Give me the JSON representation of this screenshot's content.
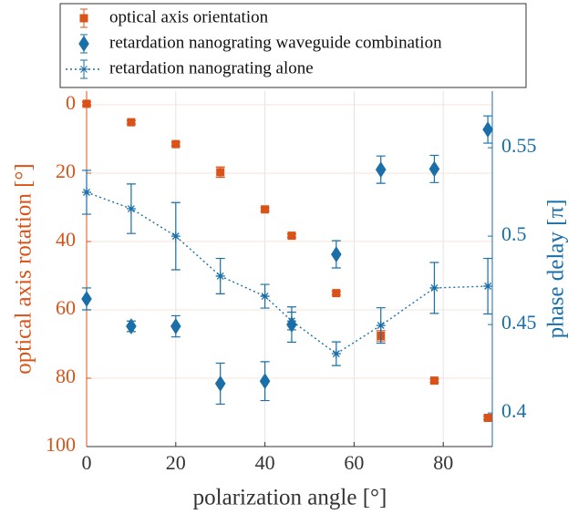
{
  "chart_data": {
    "type": "scatter",
    "xlabel": "polarization angle [°]",
    "ylabel": "optical axis rotation [°]",
    "y2label": "phase delay [π]",
    "x": [
      0,
      10,
      20,
      30,
      40,
      46,
      56,
      66,
      78,
      90
    ],
    "xlim": [
      0,
      91
    ],
    "xticks": [
      0,
      20,
      40,
      60,
      80
    ],
    "ylim": [
      -4,
      100
    ],
    "yticks": [
      0,
      20,
      40,
      60,
      80,
      100
    ],
    "y_reverse": true,
    "y2lim": [
      0.381,
      0.582
    ],
    "y2ticks": [
      0.4,
      0.45,
      0.5,
      0.55
    ],
    "grid": true,
    "legend": "top",
    "series": [
      {
        "name": "optical axis orientation",
        "color": "#d95319",
        "marker": "square",
        "axis": "y",
        "values": [
          -0.3,
          5.1,
          11.5,
          19.7,
          30.6,
          38.3,
          55.1,
          67.6,
          80.7,
          91.6
        ],
        "errors": [
          0.5,
          0.5,
          0.5,
          1.5,
          0.5,
          0.5,
          0.5,
          1.5,
          0.5,
          0.5
        ]
      },
      {
        "name": "retardation nanograting waveguide combination",
        "color": "#1a6fa8",
        "marker": "diamond",
        "axis": "y2",
        "values": [
          0.4645,
          0.449,
          0.449,
          0.4166,
          0.418,
          0.45,
          0.4897,
          0.5376,
          0.538,
          0.5603
        ],
        "errors": [
          0.0062,
          0.003,
          0.006,
          0.0116,
          0.011,
          0.01,
          0.0077,
          0.0077,
          0.0077,
          0.0077
        ]
      },
      {
        "name": "retardation nanograting alone",
        "color": "#1a6fa8",
        "marker": "star",
        "line": "dotted",
        "axis": "y2",
        "values": [
          0.5248,
          0.5155,
          0.5,
          0.4774,
          0.466,
          0.452,
          0.4335,
          0.4495,
          0.4707,
          0.4717
        ],
        "errors": [
          0.0124,
          0.014,
          0.019,
          0.01,
          0.0067,
          0.005,
          0.0067,
          0.01,
          0.0144,
          0.0157
        ]
      }
    ]
  }
}
